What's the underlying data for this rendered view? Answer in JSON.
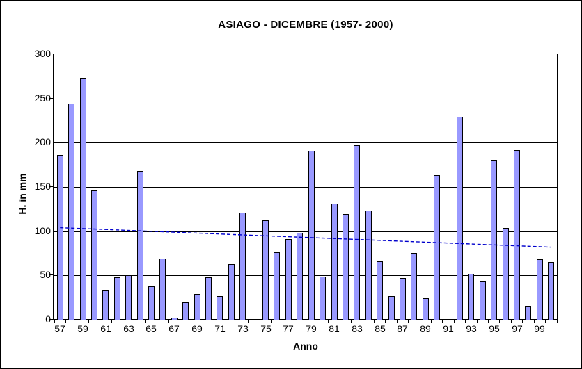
{
  "window": {
    "background": "#FFFFFF",
    "frame_color": "#000000"
  },
  "chart_data": {
    "type": "bar",
    "title": "ASIAGO - DICEMBRE (1957- 2000)",
    "xlabel": "Anno",
    "ylabel": "H. in mm",
    "ylim": [
      0,
      300
    ],
    "yticks": [
      0,
      50,
      100,
      150,
      200,
      250,
      300
    ],
    "grid": true,
    "legend": "none",
    "categories": [
      "57",
      "58",
      "59",
      "60",
      "61",
      "62",
      "63",
      "64",
      "65",
      "66",
      "67",
      "68",
      "69",
      "70",
      "71",
      "72",
      "73",
      "74",
      "75",
      "76",
      "77",
      "78",
      "79",
      "80",
      "81",
      "82",
      "83",
      "84",
      "85",
      "86",
      "87",
      "88",
      "89",
      "90",
      "91",
      "92",
      "93",
      "94",
      "95",
      "96",
      "97",
      "98",
      "99",
      "00"
    ],
    "values": [
      186,
      244,
      273,
      146,
      33,
      48,
      50,
      168,
      38,
      69,
      2,
      20,
      29,
      48,
      27,
      63,
      121,
      1,
      112,
      76,
      91,
      98,
      191,
      49,
      131,
      119,
      197,
      123,
      66,
      27,
      47,
      75,
      24,
      163,
      0,
      229,
      52,
      43,
      181,
      104,
      192,
      15,
      68,
      65
    ],
    "x_axis_labels": [
      "57",
      "59",
      "61",
      "63",
      "65",
      "67",
      "69",
      "71",
      "73",
      "75",
      "77",
      "79",
      "81",
      "83",
      "85",
      "87",
      "89",
      "91",
      "93",
      "95",
      "97",
      "99"
    ],
    "bar_fill": "#9999FF",
    "bar_border": "#000000",
    "gridline_color": "#000000",
    "trendline": {
      "type": "linear",
      "start_value": 104,
      "end_value": 82,
      "color": "#0000CC",
      "style": "dashed"
    }
  }
}
